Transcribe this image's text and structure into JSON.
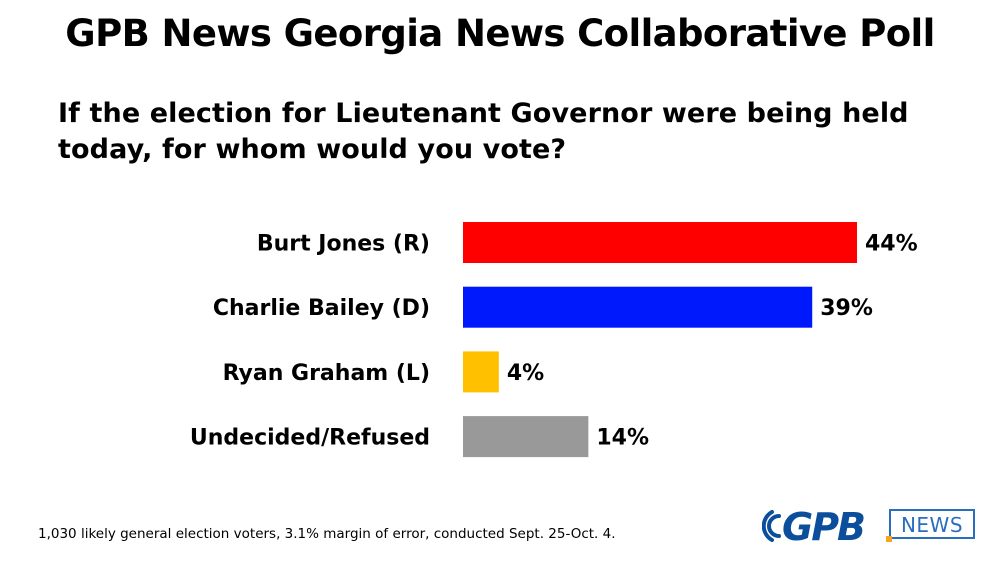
{
  "title": "GPB News Georgia News Collaborative Poll",
  "question": "If the election for Lieutenant Governor were being held today, for whom would you vote?",
  "chart_data": {
    "type": "bar",
    "orientation": "horizontal",
    "categories": [
      "Burt Jones (R)",
      "Charlie Bailey (D)",
      "Ryan Graham (L)",
      "Undecided/Refused"
    ],
    "values": [
      44,
      39,
      4,
      14
    ],
    "value_labels": [
      "44%",
      "39%",
      "4%",
      "14%"
    ],
    "colors": [
      "#fe0000",
      "#0019fc",
      "#ffc000",
      "#999999"
    ],
    "unit": "%",
    "xlim": [
      0,
      44
    ],
    "grid": false,
    "legend": "none"
  },
  "footnote": "1,030 likely general election voters, 3.1% margin of error, conducted Sept. 25-Oct. 4.",
  "logo": {
    "brand": "GPB",
    "badge": "NEWS",
    "brand_color": "#0b4f9c",
    "badge_color": "#2a6fbd",
    "accent_color": "#f5a623"
  }
}
